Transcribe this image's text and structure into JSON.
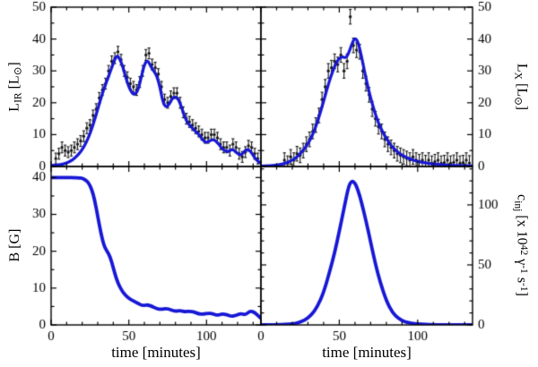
{
  "figure": {
    "background": "#ffffff",
    "frame_color": "#000000",
    "curve_color": "#1717d6",
    "point_color": "#1a1a1a"
  },
  "chart_data": [
    {
      "id": "infrared-luminosity",
      "type": "line+scatter",
      "position": "top-left",
      "ylabel": "L_IR [L_sun]",
      "ylabel_segments": [
        {
          "t": "L"
        },
        {
          "t": "IR",
          "s": "sub"
        },
        {
          "t": " [L"
        },
        {
          "t": "⊙",
          "s": "sub"
        },
        {
          "t": "]"
        }
      ],
      "xlabel": "",
      "xlim": [
        0,
        135
      ],
      "ylim": [
        0,
        50
      ],
      "xticks": [
        0,
        50,
        100
      ],
      "yticks": [
        0,
        10,
        20,
        30,
        40,
        50
      ],
      "xtick_minor_step": 10,
      "ytick_minor_step": 5,
      "line_width": 3.2,
      "curve": {
        "t": [
          0,
          4,
          8,
          12,
          15,
          18,
          21,
          24,
          27,
          30,
          33,
          36,
          39,
          42,
          44,
          46,
          48,
          50,
          52,
          54,
          56,
          58,
          60,
          62,
          64,
          66,
          68,
          70,
          72,
          74,
          76,
          78,
          80,
          82,
          84,
          86,
          88,
          90,
          92,
          94,
          96,
          98,
          100,
          102,
          104,
          106,
          108,
          110,
          112,
          114,
          116,
          118,
          120,
          122,
          124,
          126,
          128,
          130,
          132,
          135
        ],
        "y": [
          0.3,
          0.4,
          0.8,
          1.5,
          2.5,
          4,
          6,
          9,
          13,
          18,
          23,
          27,
          31,
          35,
          34,
          31.5,
          28,
          25,
          23,
          22.5,
          24,
          28,
          32,
          33.5,
          31.5,
          30,
          28.5,
          25,
          20,
          18.5,
          19.5,
          21.5,
          22,
          21,
          18.5,
          15.5,
          13.5,
          12.5,
          11.5,
          10.5,
          9.5,
          8,
          7.5,
          8,
          8.5,
          8,
          7,
          5.5,
          5,
          4.5,
          5.5,
          5,
          4,
          3.5,
          4.5,
          5.5,
          5,
          3.5,
          2,
          1
        ]
      },
      "scatter": {
        "t": [
          3,
          5,
          7,
          9,
          11,
          13,
          15,
          17,
          19,
          21,
          23,
          25,
          27,
          29,
          31,
          33,
          35,
          37,
          39,
          41,
          43,
          45,
          47,
          49,
          51,
          53,
          55,
          57,
          59,
          61,
          63,
          65,
          67,
          69,
          71,
          73,
          75,
          77,
          79,
          81,
          83,
          85,
          87,
          89,
          91,
          93,
          95,
          97,
          99,
          101,
          103,
          105,
          107,
          109,
          111,
          113,
          115,
          117,
          119,
          121,
          123,
          125,
          127,
          129,
          131,
          133
        ],
        "y": [
          2.5,
          4,
          6,
          5,
          4.5,
          5,
          6,
          7,
          8,
          9.5,
          12,
          13,
          16,
          18,
          21.5,
          24,
          26,
          30,
          33,
          34,
          36,
          33.5,
          30,
          28,
          26,
          25,
          24,
          26.5,
          30,
          35,
          35.5,
          32,
          31,
          29,
          25,
          21,
          20,
          22,
          23,
          23,
          20,
          17,
          15,
          14,
          13,
          12,
          11,
          10,
          9,
          9,
          10,
          10,
          9,
          7,
          6,
          6,
          5,
          7,
          6,
          4,
          3,
          4.5,
          6.5,
          6,
          4,
          2.5
        ],
        "yerr": 1.7
      }
    },
    {
      "id": "xray-luminosity",
      "type": "line+scatter",
      "position": "top-right",
      "ylabel": "L_X [L_sun]",
      "ylabel_segments": [
        {
          "t": "L"
        },
        {
          "t": "X",
          "s": "sub"
        },
        {
          "t": " [L"
        },
        {
          "t": "⊙",
          "s": "sub"
        },
        {
          "t": "]"
        }
      ],
      "xlabel": "",
      "xlim": [
        0,
        135
      ],
      "ylim": [
        0,
        50
      ],
      "xticks": [
        0,
        50,
        100
      ],
      "yticks": [
        0,
        10,
        20,
        30,
        40,
        50
      ],
      "xtick_minor_step": 10,
      "ytick_minor_step": 5,
      "line_width": 3.2,
      "curve": {
        "t": [
          0,
          5,
          10,
          14,
          18,
          22,
          26,
          30,
          34,
          38,
          42,
          45,
          48,
          50,
          52,
          54,
          56,
          58,
          60,
          62,
          64,
          66,
          68,
          70,
          72,
          75,
          78,
          81,
          84,
          88,
          92,
          96,
          100,
          105,
          110,
          115,
          120,
          127,
          135
        ],
        "y": [
          0.1,
          0.2,
          0.4,
          0.8,
          1.5,
          2.5,
          4.5,
          7,
          11,
          17,
          24,
          29,
          32.5,
          34,
          34.5,
          34,
          35.5,
          38.5,
          40.5,
          39,
          35,
          30,
          25.5,
          21.5,
          18,
          13.5,
          10.5,
          8,
          6,
          4.2,
          3,
          2.2,
          1.6,
          1.1,
          0.8,
          0.6,
          0.4,
          0.3,
          0.2
        ]
      },
      "scatter": {
        "t": [
          15,
          17,
          19,
          21,
          23,
          25,
          27,
          29,
          31,
          33,
          35,
          37,
          39,
          41,
          43,
          45,
          47,
          49,
          51,
          53,
          55,
          57,
          59,
          61,
          63,
          65,
          67,
          69,
          71,
          73,
          75,
          77,
          79,
          81,
          83,
          85,
          87,
          89,
          91,
          93,
          95,
          97,
          99,
          101,
          103,
          105,
          107,
          109,
          111,
          113,
          115,
          117,
          119,
          121,
          123,
          125,
          127,
          129,
          131,
          133
        ],
        "y": [
          2,
          1,
          3,
          2,
          4,
          3.5,
          5,
          7,
          8.5,
          11,
          13,
          16,
          21,
          25,
          30,
          31,
          33,
          32,
          35,
          30,
          33,
          47,
          38,
          36.5,
          36,
          30,
          26,
          22.5,
          18,
          15,
          12.5,
          11,
          8.5,
          7,
          6,
          5,
          4,
          3.5,
          3,
          2.5,
          2,
          3,
          2,
          1.5,
          2,
          1.2,
          2,
          1,
          1.5,
          2,
          1,
          1.2,
          2,
          1,
          1.3,
          2,
          1,
          1.2,
          2,
          1.1
        ],
        "yerr": 2.3
      }
    },
    {
      "id": "magnetic-field",
      "type": "line",
      "position": "bottom-left",
      "ylabel": "B [G]",
      "ylabel_segments": [
        {
          "t": "B [G]"
        }
      ],
      "xlabel": "time [minutes]",
      "xlim": [
        0,
        135
      ],
      "ylim": [
        0,
        43
      ],
      "xticks": [
        0,
        50,
        100
      ],
      "yticks": [
        0,
        10,
        20,
        30,
        40
      ],
      "xtick_minor_step": 10,
      "ytick_minor_step": 5,
      "line_width": 3.8,
      "curve": {
        "t": [
          0,
          5,
          10,
          15,
          18,
          20,
          22,
          24,
          26,
          28,
          30,
          32,
          34,
          36,
          38,
          40,
          42,
          44,
          46,
          48,
          50,
          53,
          56,
          59,
          62,
          65,
          68,
          71,
          74,
          77,
          80,
          83,
          86,
          89,
          92,
          95,
          98,
          101,
          104,
          107,
          110,
          113,
          116,
          119,
          122,
          125,
          128,
          131,
          135
        ],
        "y": [
          40,
          40,
          40,
          40,
          39.9,
          39.8,
          39.4,
          38.6,
          37,
          34,
          29.5,
          25,
          21.5,
          20,
          18.5,
          15.5,
          12.5,
          10.5,
          9,
          8,
          7.2,
          6.5,
          5.8,
          5.2,
          5.5,
          5,
          4.4,
          4.2,
          4.5,
          4.1,
          3.7,
          3.9,
          3.6,
          3.7,
          3.5,
          3,
          2.9,
          3.2,
          3,
          2.6,
          3,
          2.8,
          2.3,
          2.6,
          3.1,
          2.7,
          3.8,
          3.4,
          1.8
        ]
      }
    },
    {
      "id": "injection-rate",
      "type": "line",
      "position": "bottom-right",
      "ylabel": "c_inj [x 10^42 gamma^-1 s^-1]",
      "ylabel_segments": [
        {
          "t": "c"
        },
        {
          "t": "inj",
          "s": "sub"
        },
        {
          "t": " [x 10"
        },
        {
          "t": "42",
          "s": "sup"
        },
        {
          "t": " γ"
        },
        {
          "t": "-1",
          "s": "sup"
        },
        {
          "t": " s"
        },
        {
          "t": "-1",
          "s": "sup"
        },
        {
          "t": "]"
        }
      ],
      "xlabel": "time [minutes]",
      "xlim": [
        0,
        135
      ],
      "ylim": [
        0,
        132
      ],
      "xticks": [
        0,
        50,
        100
      ],
      "yticks": [
        0,
        50,
        100
      ],
      "xtick_minor_step": 10,
      "ytick_minor_step": 10,
      "line_width": 3.8,
      "curve": {
        "t": [
          0,
          10,
          15,
          20,
          24,
          28,
          32,
          36,
          40,
          44,
          47,
          50,
          53,
          56,
          58,
          60,
          62,
          64,
          67,
          70,
          73,
          76,
          80,
          84,
          88,
          92,
          96,
          100,
          105,
          110,
          120,
          135
        ],
        "y": [
          0,
          0.1,
          0.3,
          0.8,
          1.8,
          4,
          8,
          15,
          27,
          45,
          60,
          78,
          97,
          116,
          120,
          118.5,
          112,
          103,
          87,
          69,
          51,
          36,
          20,
          10,
          5,
          2.5,
          1.3,
          0.7,
          0.4,
          0.2,
          0.1,
          0
        ]
      }
    }
  ]
}
